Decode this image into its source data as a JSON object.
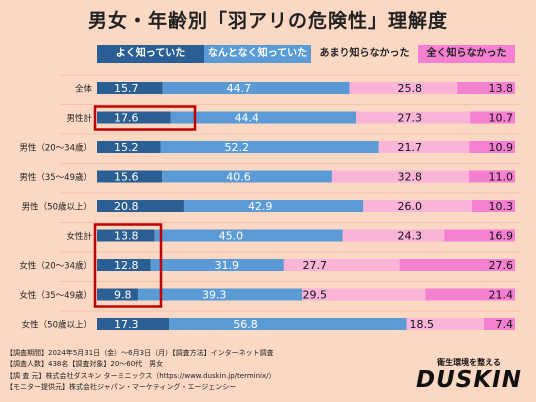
{
  "title": "男女・年齢別「羽アリの危険性」理解度",
  "legend": [
    "よく知っていた",
    "なんとなく知っていた",
    "あまり知らなかった",
    "全く知らなかった"
  ],
  "colors": {
    "background": "#fbd8c4",
    "series": [
      "#2b5f93",
      "#5b9bd5",
      "#f9b4d8",
      "#f57fd0"
    ],
    "highlight": "#c00000"
  },
  "chart_data": {
    "type": "bar",
    "orientation": "horizontal",
    "stacked": true,
    "unit": "%",
    "categories": [
      "全体",
      "男性計",
      "男性（20～34歳）",
      "男性（35～49歳）",
      "男性（50歳以上）",
      "女性計",
      "女性（20～34歳）",
      "女性（35～49歳）",
      "女性（50歳以上）"
    ],
    "series": [
      {
        "name": "よく知っていた",
        "values": [
          15.7,
          17.6,
          15.2,
          15.6,
          20.8,
          13.8,
          12.8,
          9.8,
          17.3
        ]
      },
      {
        "name": "なんとなく知っていた",
        "values": [
          44.7,
          44.4,
          52.2,
          40.6,
          42.9,
          45.0,
          31.9,
          39.3,
          56.8
        ]
      },
      {
        "name": "あまり知らなかった",
        "values": [
          25.8,
          27.3,
          21.7,
          32.8,
          26.0,
          24.3,
          27.7,
          29.5,
          18.5
        ]
      },
      {
        "name": "全く知らなかった",
        "values": [
          13.8,
          10.7,
          10.9,
          11.0,
          10.3,
          16.9,
          27.6,
          21.4,
          7.4
        ]
      }
    ],
    "xlim": [
      0,
      100
    ],
    "highlighted_groups": [
      [
        "男性計"
      ],
      [
        "女性計",
        "女性（20～34歳）",
        "女性（35～49歳）"
      ]
    ]
  },
  "footer": [
    "【調査期間】2024年5月31日（金）～6月3日（月）【調査方法】インターネット調査",
    "【調査人数】438名【調査対象】20～60代　男女",
    "【調 査 元】株式会社ダスキン ターミニックス（https://www.duskin.jp/terminix/）",
    "【モニター提供元】株式会社ジャパン・マーケティング・エージェンシー"
  ],
  "brand": {
    "tagline": "衛生環境を整える",
    "name": "DUSKIN"
  }
}
